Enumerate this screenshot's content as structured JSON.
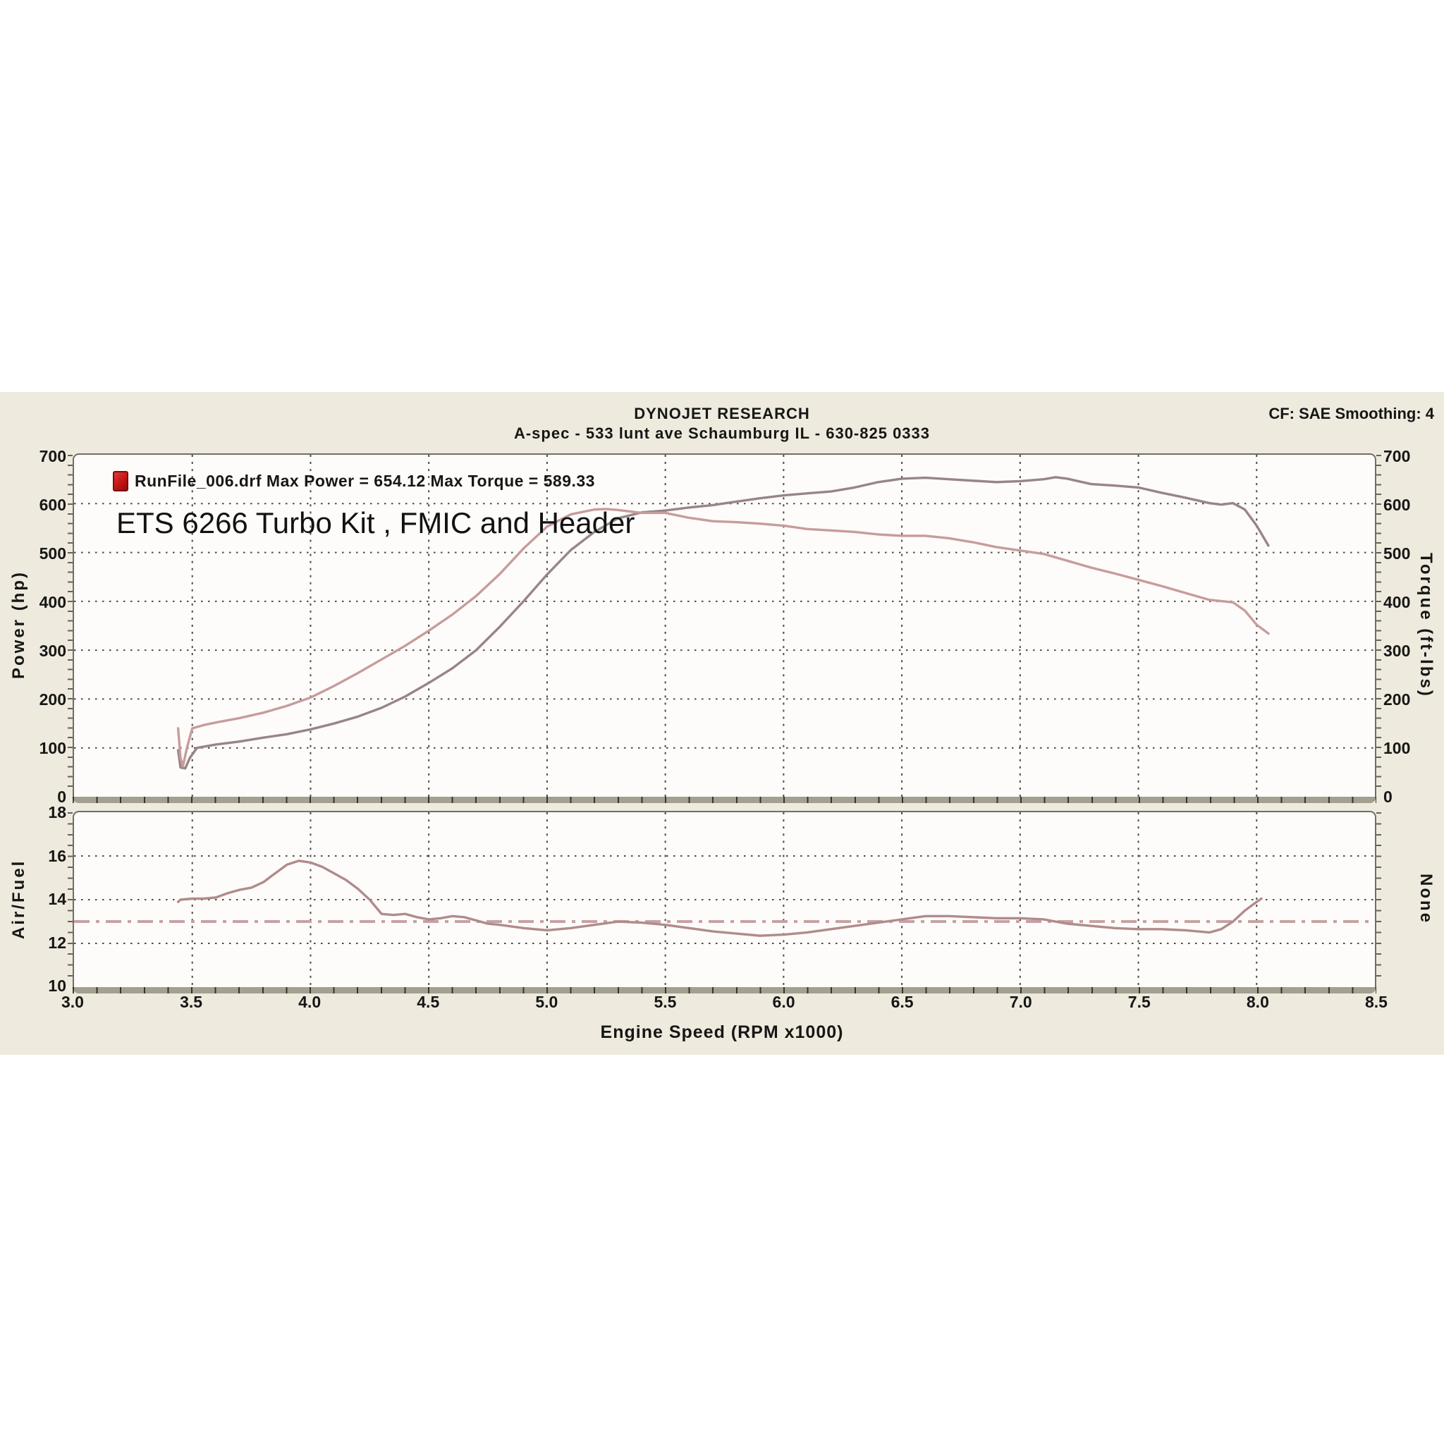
{
  "header": {
    "brand": "DYNOJET RESEARCH",
    "subtitle": "A-spec - 533 lunt ave Schaumburg IL - 630-825 0333",
    "cf_smoothing": "CF: SAE  Smoothing: 4"
  },
  "legend": {
    "text": "RunFile_006.drf Max Power = 654.12 Max Torque = 589.33",
    "icon": "runfile-document-icon"
  },
  "annotation": "ETS 6266 Turbo Kit , FMIC and Header",
  "axes": {
    "x": {
      "title": "Engine Speed (RPM x1000)",
      "ticks": [
        "3.0",
        "3.5",
        "4.0",
        "4.5",
        "5.0",
        "5.5",
        "6.0",
        "6.5",
        "7.0",
        "7.5",
        "8.0",
        "8.5"
      ]
    },
    "power": {
      "title": "Power (hp)",
      "ticks": [
        "700",
        "600",
        "500",
        "400",
        "300",
        "200",
        "100",
        "0"
      ]
    },
    "torque": {
      "title": "Torque (ft-lbs)",
      "ticks": [
        "700",
        "600",
        "500",
        "400",
        "300",
        "200",
        "100",
        "0"
      ]
    },
    "afr": {
      "title": "Air/Fuel",
      "right_title": "None",
      "ticks": [
        "18",
        "16",
        "14",
        "12",
        "10"
      ]
    }
  },
  "colors": {
    "sheet_bg": "#eeeadd",
    "plot_bg": "#fdfcfa",
    "grid": "#4a4a46",
    "power_curve": "#988585",
    "torque_curve": "#c79c9c",
    "afr_curve": "#b18b8b",
    "afr_ref": "#c7a2a2",
    "axis_bar": "#a3a090",
    "legend_icon_red": "#c41414"
  },
  "chart_data": [
    {
      "type": "line",
      "title": "DYNOJET RESEARCH",
      "subtitle": "A-spec - 533 lunt ave Schaumburg IL - 630-825 0333",
      "xlabel": "Engine Speed (RPM x1000)",
      "ylabel_left": "Power (hp)",
      "ylabel_right": "Torque (ft-lbs)",
      "legend": "RunFile_006.drf Max Power = 654.12 Max Torque = 589.33",
      "max_power": 654.12,
      "max_torque": 589.33,
      "correction_factor": "SAE",
      "smoothing": 4,
      "xlim": [
        3.0,
        8.5
      ],
      "ylim": [
        0,
        700
      ],
      "grid_x": [
        3.5,
        4.0,
        4.5,
        5.0,
        5.5,
        6.0,
        6.5,
        7.0,
        7.5,
        8.0
      ],
      "grid_y": [
        100,
        200,
        300,
        400,
        500,
        600
      ],
      "series": [
        {
          "name": "Power (hp)",
          "color_key": "power_curve",
          "points": [
            [
              3.44,
              95
            ],
            [
              3.45,
              60
            ],
            [
              3.47,
              58
            ],
            [
              3.49,
              80
            ],
            [
              3.52,
              100
            ],
            [
              3.6,
              107
            ],
            [
              3.7,
              113
            ],
            [
              3.8,
              121
            ],
            [
              3.9,
              128
            ],
            [
              4.0,
              138
            ],
            [
              4.1,
              150
            ],
            [
              4.2,
              164
            ],
            [
              4.3,
              182
            ],
            [
              4.4,
              205
            ],
            [
              4.5,
              233
            ],
            [
              4.6,
              263
            ],
            [
              4.7,
              300
            ],
            [
              4.8,
              348
            ],
            [
              4.9,
              400
            ],
            [
              5.0,
              455
            ],
            [
              5.1,
              505
            ],
            [
              5.2,
              542
            ],
            [
              5.3,
              570
            ],
            [
              5.4,
              582
            ],
            [
              5.5,
              586
            ],
            [
              5.6,
              592
            ],
            [
              5.7,
              597
            ],
            [
              5.8,
              604
            ],
            [
              5.9,
              611
            ],
            [
              6.0,
              617
            ],
            [
              6.1,
              621
            ],
            [
              6.2,
              625
            ],
            [
              6.3,
              633
            ],
            [
              6.4,
              644
            ],
            [
              6.5,
              651
            ],
            [
              6.6,
              653
            ],
            [
              6.7,
              650
            ],
            [
              6.8,
              647
            ],
            [
              6.9,
              644
            ],
            [
              7.0,
              646
            ],
            [
              7.1,
              650
            ],
            [
              7.15,
              654
            ],
            [
              7.2,
              651
            ],
            [
              7.3,
              640
            ],
            [
              7.4,
              637
            ],
            [
              7.5,
              633
            ],
            [
              7.6,
              622
            ],
            [
              7.7,
              612
            ],
            [
              7.8,
              601
            ],
            [
              7.85,
              598
            ],
            [
              7.9,
              601
            ],
            [
              7.95,
              588
            ],
            [
              8.0,
              555
            ],
            [
              8.05,
              514
            ]
          ]
        },
        {
          "name": "Torque (ft-lbs)",
          "color_key": "torque_curve",
          "points": [
            [
              3.44,
              140
            ],
            [
              3.45,
              80
            ],
            [
              3.46,
              62
            ],
            [
              3.48,
              105
            ],
            [
              3.5,
              140
            ],
            [
              3.55,
              147
            ],
            [
              3.6,
              152
            ],
            [
              3.7,
              161
            ],
            [
              3.8,
              172
            ],
            [
              3.9,
              186
            ],
            [
              4.0,
              203
            ],
            [
              4.1,
              227
            ],
            [
              4.2,
              253
            ],
            [
              4.3,
              281
            ],
            [
              4.4,
              309
            ],
            [
              4.5,
              340
            ],
            [
              4.6,
              373
            ],
            [
              4.7,
              411
            ],
            [
              4.8,
              456
            ],
            [
              4.9,
              508
            ],
            [
              5.0,
              553
            ],
            [
              5.1,
              578
            ],
            [
              5.2,
              588
            ],
            [
              5.25,
              589
            ],
            [
              5.3,
              587
            ],
            [
              5.4,
              581
            ],
            [
              5.5,
              581
            ],
            [
              5.6,
              571
            ],
            [
              5.7,
              564
            ],
            [
              5.8,
              562
            ],
            [
              5.9,
              559
            ],
            [
              6.0,
              555
            ],
            [
              6.1,
              548
            ],
            [
              6.2,
              545
            ],
            [
              6.3,
              542
            ],
            [
              6.4,
              537
            ],
            [
              6.5,
              534
            ],
            [
              6.6,
              534
            ],
            [
              6.7,
              529
            ],
            [
              6.8,
              521
            ],
            [
              6.9,
              511
            ],
            [
              7.0,
              504
            ],
            [
              7.1,
              497
            ],
            [
              7.2,
              483
            ],
            [
              7.3,
              469
            ],
            [
              7.4,
              457
            ],
            [
              7.5,
              444
            ],
            [
              7.6,
              431
            ],
            [
              7.7,
              417
            ],
            [
              7.8,
              403
            ],
            [
              7.9,
              398
            ],
            [
              7.95,
              381
            ],
            [
              8.0,
              352
            ],
            [
              8.05,
              334
            ]
          ]
        }
      ]
    },
    {
      "type": "line",
      "ylabel_left": "Air/Fuel",
      "ylabel_right": "None",
      "xlim": [
        3.0,
        8.5
      ],
      "ylim": [
        10,
        18
      ],
      "grid_x": [
        3.5,
        4.0,
        4.5,
        5.0,
        5.5,
        6.0,
        6.5,
        7.0,
        7.5,
        8.0
      ],
      "grid_y": [
        12,
        14,
        16
      ],
      "ref_line": 13.0,
      "series": [
        {
          "name": "Air/Fuel",
          "color_key": "afr_curve",
          "points": [
            [
              3.44,
              13.9
            ],
            [
              3.45,
              14.0
            ],
            [
              3.5,
              14.05
            ],
            [
              3.55,
              14.05
            ],
            [
              3.6,
              14.1
            ],
            [
              3.65,
              14.3
            ],
            [
              3.7,
              14.45
            ],
            [
              3.75,
              14.55
            ],
            [
              3.8,
              14.8
            ],
            [
              3.85,
              15.2
            ],
            [
              3.9,
              15.6
            ],
            [
              3.95,
              15.78
            ],
            [
              4.0,
              15.7
            ],
            [
              4.05,
              15.5
            ],
            [
              4.1,
              15.2
            ],
            [
              4.15,
              14.9
            ],
            [
              4.2,
              14.5
            ],
            [
              4.25,
              14.0
            ],
            [
              4.3,
              13.35
            ],
            [
              4.35,
              13.3
            ],
            [
              4.4,
              13.35
            ],
            [
              4.45,
              13.2
            ],
            [
              4.5,
              13.1
            ],
            [
              4.55,
              13.15
            ],
            [
              4.6,
              13.25
            ],
            [
              4.65,
              13.2
            ],
            [
              4.7,
              13.05
            ],
            [
              4.75,
              12.9
            ],
            [
              4.8,
              12.85
            ],
            [
              4.9,
              12.7
            ],
            [
              5.0,
              12.6
            ],
            [
              5.1,
              12.7
            ],
            [
              5.2,
              12.85
            ],
            [
              5.3,
              13.0
            ],
            [
              5.4,
              12.95
            ],
            [
              5.5,
              12.85
            ],
            [
              5.6,
              12.7
            ],
            [
              5.7,
              12.55
            ],
            [
              5.8,
              12.45
            ],
            [
              5.9,
              12.35
            ],
            [
              6.0,
              12.4
            ],
            [
              6.1,
              12.5
            ],
            [
              6.2,
              12.65
            ],
            [
              6.3,
              12.8
            ],
            [
              6.4,
              12.95
            ],
            [
              6.5,
              13.1
            ],
            [
              6.6,
              13.25
            ],
            [
              6.7,
              13.25
            ],
            [
              6.8,
              13.2
            ],
            [
              6.9,
              13.15
            ],
            [
              7.0,
              13.15
            ],
            [
              7.1,
              13.1
            ],
            [
              7.15,
              13.0
            ],
            [
              7.2,
              12.9
            ],
            [
              7.3,
              12.8
            ],
            [
              7.4,
              12.7
            ],
            [
              7.5,
              12.65
            ],
            [
              7.6,
              12.65
            ],
            [
              7.7,
              12.6
            ],
            [
              7.75,
              12.55
            ],
            [
              7.8,
              12.5
            ],
            [
              7.85,
              12.65
            ],
            [
              7.9,
              13.0
            ],
            [
              7.95,
              13.5
            ],
            [
              8.0,
              13.9
            ],
            [
              8.02,
              14.05
            ]
          ]
        }
      ]
    }
  ]
}
